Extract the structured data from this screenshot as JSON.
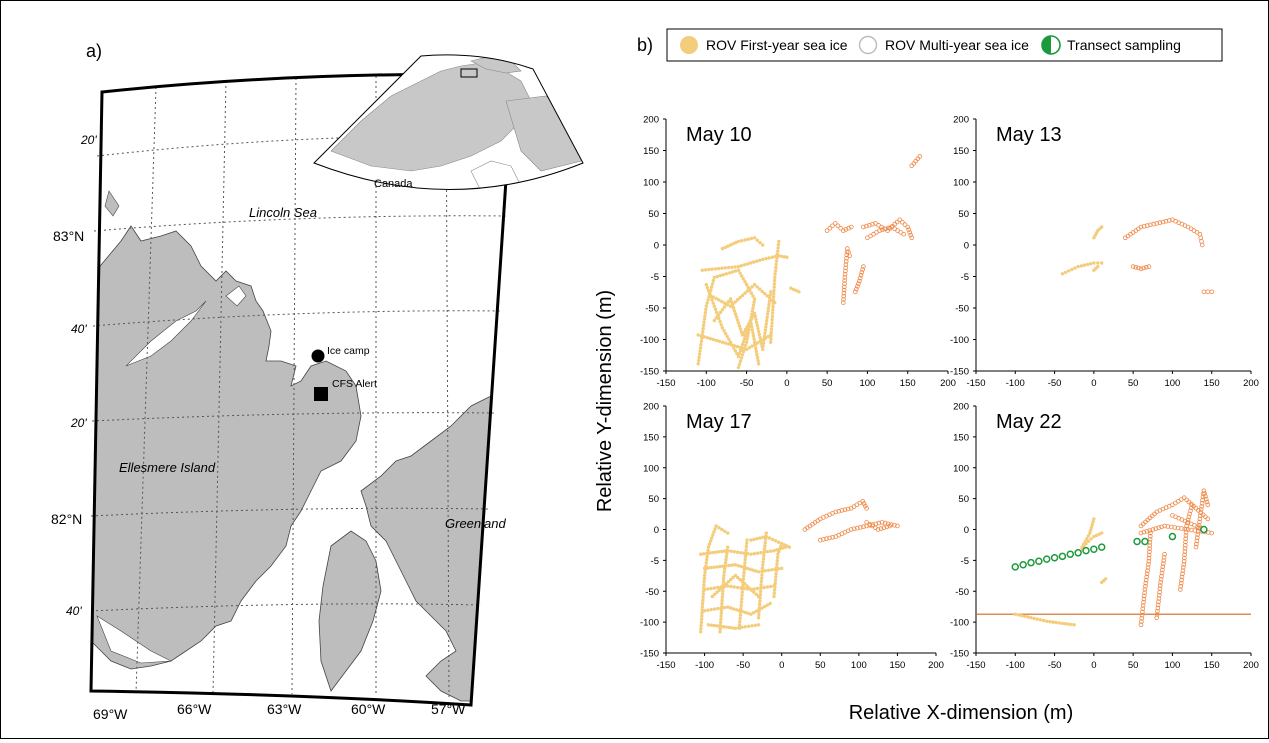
{
  "panel_a": {
    "label": "a)",
    "places": {
      "lincoln_sea": "Lincoln Sea",
      "ellesmere": "Ellesmere Island",
      "greenland": "Greenland",
      "canada": "Canada",
      "ice_camp": "Ice camp",
      "cfs_alert": "CFS Alert"
    },
    "lat_labels": [
      "20'",
      "83°N",
      "40'",
      "20'",
      "82°N",
      "40'"
    ],
    "lon_labels": [
      "69°W",
      "66°W",
      "63°W",
      "60°W",
      "57°W"
    ],
    "colors": {
      "land": "#bdbdbd",
      "water": "#ffffff",
      "inset_land": "#c8c8c8"
    }
  },
  "panel_b": {
    "label": "b)",
    "legend": [
      {
        "label": "ROV First-year sea ice",
        "icon": "filled-circle-icon",
        "color": "#f4cd7c"
      },
      {
        "label": "ROV Multi-year sea ice",
        "icon": "open-circle-icon",
        "color": "#bbbbbb"
      },
      {
        "label": "Transect sampling",
        "icon": "green-circle-icon",
        "color": "#1b9a3c"
      }
    ],
    "ylabel": "Relative Y-dimension (m)",
    "xlabel": "Relative X-dimension (m)"
  },
  "chart_data": [
    {
      "type": "scatter",
      "title": "May 10",
      "xlim": [
        -150,
        200
      ],
      "ylim": [
        -150,
        200
      ],
      "xticks": [
        "-150",
        "-100",
        "-50",
        "0",
        "50",
        "100",
        "150",
        "200"
      ],
      "yticks": [
        "200",
        "150",
        "100",
        "50",
        "0",
        "-5",
        "-50",
        "-100",
        "-150"
      ],
      "series": [
        {
          "name": "ROV First-year sea ice",
          "paths": [
            [
              [
                -110,
                -140
              ],
              [
                -100,
                -60
              ],
              [
                -90,
                -20
              ],
              [
                -60,
                -10
              ],
              [
                -40,
                -50
              ],
              [
                -50,
                -110
              ],
              [
                -60,
                -145
              ]
            ],
            [
              [
                -105,
                -10
              ],
              [
                -60,
                -5
              ],
              [
                -30,
                5
              ],
              [
                -10,
                10
              ],
              [
                0,
                8
              ]
            ],
            [
              [
                -90,
                -80
              ],
              [
                -70,
                -50
              ],
              [
                -55,
                -100
              ],
              [
                -40,
                -70
              ],
              [
                -30,
                -120
              ],
              [
                -20,
                -40
              ]
            ],
            [
              [
                -80,
                20
              ],
              [
                -60,
                30
              ],
              [
                -40,
                35
              ],
              [
                -30,
                25
              ]
            ],
            [
              [
                -100,
                -30
              ],
              [
                -80,
                -90
              ],
              [
                -60,
                -130
              ],
              [
                -45,
                -80
              ],
              [
                -35,
                -140
              ]
            ],
            [
              [
                -20,
                -110
              ],
              [
                -15,
                -20
              ],
              [
                -10,
                30
              ]
            ],
            [
              [
                -110,
                -100
              ],
              [
                -80,
                -110
              ],
              [
                -50,
                -120
              ],
              [
                -20,
                -100
              ]
            ],
            [
              [
                -95,
                -45
              ],
              [
                -70,
                -60
              ],
              [
                -40,
                -30
              ],
              [
                -15,
                -55
              ]
            ],
            [
              [
                5,
                -35
              ],
              [
                15,
                -40
              ]
            ]
          ]
        },
        {
          "name": "ROV Multi-year sea ice",
          "paths": [
            [
              [
                50,
                45
              ],
              [
                60,
                55
              ],
              [
                70,
                45
              ],
              [
                80,
                50
              ]
            ],
            [
              [
                95,
                50
              ],
              [
                110,
                55
              ],
              [
                125,
                45
              ],
              [
                140,
                60
              ],
              [
                150,
                50
              ],
              [
                155,
                35
              ]
            ],
            [
              [
                100,
                35
              ],
              [
                115,
                45
              ],
              [
                130,
                50
              ],
              [
                145,
                40
              ]
            ],
            [
              [
                70,
                -55
              ],
              [
                72,
                -20
              ],
              [
                75,
                20
              ],
              [
                78,
                10
              ]
            ],
            [
              [
                85,
                -40
              ],
              [
                90,
                -25
              ],
              [
                95,
                -5
              ]
            ],
            [
              [
                155,
                135
              ],
              [
                165,
                148
              ]
            ]
          ]
        }
      ],
      "transect": [],
      "hline": null
    },
    {
      "type": "scatter",
      "title": "May 13",
      "xlim": [
        -150,
        200
      ],
      "ylim": [
        -150,
        200
      ],
      "xticks": [
        "-150",
        "-100",
        "-50",
        "0",
        "50",
        "100",
        "150",
        "200"
      ],
      "yticks": [
        "200",
        "150",
        "100",
        "50",
        "0",
        "-5",
        "-50",
        "-100",
        "-150"
      ],
      "series": [
        {
          "name": "ROV First-year sea ice",
          "paths": [
            [
              [
                -40,
                -15
              ],
              [
                -20,
                -5
              ],
              [
                0,
                0
              ],
              [
                10,
                0
              ]
            ],
            [
              [
                0,
                35
              ],
              [
                5,
                45
              ],
              [
                10,
                50
              ]
            ],
            [
              [
                0,
                -10
              ],
              [
                5,
                -5
              ]
            ]
          ]
        },
        {
          "name": "ROV Multi-year sea ice",
          "paths": [
            [
              [
                40,
                35
              ],
              [
                60,
                50
              ],
              [
                80,
                55
              ],
              [
                100,
                60
              ],
              [
                120,
                50
              ],
              [
                135,
                40
              ],
              [
                138,
                25
              ]
            ],
            [
              [
                50,
                -5
              ],
              [
                60,
                -8
              ],
              [
                70,
                -5
              ]
            ],
            [
              [
                140,
                -40
              ],
              [
                150,
                -40
              ]
            ]
          ]
        }
      ],
      "transect": [],
      "hline": null
    },
    {
      "type": "scatter",
      "title": "May 17",
      "xlim": [
        -150,
        200
      ],
      "ylim": [
        -150,
        200
      ],
      "xticks": [
        "-150",
        "-100",
        "-50",
        "0",
        "50",
        "100",
        "150",
        "200"
      ],
      "yticks": [
        "200",
        "150",
        "100",
        "50",
        "0",
        "-5",
        "-50",
        "-100",
        "-150"
      ],
      "series": [
        {
          "name": "ROV First-year sea ice",
          "paths": [
            [
              [
                -105,
                -120
              ],
              [
                -100,
                -40
              ],
              [
                -95,
                0
              ],
              [
                -85,
                30
              ],
              [
                -70,
                20
              ]
            ],
            [
              [
                -105,
                -10
              ],
              [
                -70,
                -5
              ],
              [
                -40,
                -10
              ],
              [
                -10,
                -5
              ],
              [
                5,
                0
              ]
            ],
            [
              [
                -100,
                -30
              ],
              [
                -60,
                -25
              ],
              [
                -30,
                -35
              ],
              [
                0,
                -30
              ]
            ],
            [
              [
                -100,
                -60
              ],
              [
                -70,
                -55
              ],
              [
                -40,
                -60
              ],
              [
                -10,
                -55
              ]
            ],
            [
              [
                -100,
                -90
              ],
              [
                -70,
                -85
              ],
              [
                -40,
                -95
              ],
              [
                -15,
                -80
              ]
            ],
            [
              [
                -95,
                -110
              ],
              [
                -60,
                -115
              ],
              [
                -30,
                -110
              ]
            ],
            [
              [
                -80,
                -120
              ],
              [
                -75,
                -40
              ],
              [
                -70,
                0
              ]
            ],
            [
              [
                -55,
                -115
              ],
              [
                -50,
                -50
              ],
              [
                -45,
                10
              ]
            ],
            [
              [
                -30,
                -100
              ],
              [
                -25,
                -30
              ],
              [
                -20,
                20
              ]
            ],
            [
              [
                -10,
                -70
              ],
              [
                -5,
                -10
              ],
              [
                0,
                5
              ]
            ],
            [
              [
                -90,
                -70
              ],
              [
                -60,
                -40
              ],
              [
                -30,
                -70
              ]
            ],
            [
              [
                -40,
                10
              ],
              [
                -20,
                15
              ],
              [
                0,
                5
              ],
              [
                10,
                0
              ]
            ]
          ]
        },
        {
          "name": "ROV Multi-year sea ice",
          "paths": [
            [
              [
                30,
                25
              ],
              [
                50,
                40
              ],
              [
                70,
                50
              ],
              [
                90,
                55
              ],
              [
                105,
                65
              ],
              [
                110,
                55
              ]
            ],
            [
              [
                50,
                10
              ],
              [
                70,
                15
              ],
              [
                90,
                25
              ],
              [
                110,
                30
              ],
              [
                130,
                35
              ],
              [
                150,
                30
              ]
            ],
            [
              [
                110,
                35
              ],
              [
                125,
                25
              ],
              [
                140,
                30
              ]
            ]
          ]
        }
      ],
      "transect": [],
      "hline": null
    },
    {
      "type": "scatter",
      "title": "May 22",
      "xlim": [
        -150,
        200
      ],
      "ylim": [
        -150,
        200
      ],
      "xticks": [
        "-150",
        "-100",
        "-50",
        "0",
        "50",
        "100",
        "150",
        "200"
      ],
      "yticks": [
        "200",
        "150",
        "100",
        "50",
        "0",
        "-5",
        "-50",
        "-100",
        "-150"
      ],
      "series": [
        {
          "name": "ROV First-year sea ice",
          "paths": [
            [
              [
                -20,
                -10
              ],
              [
                -10,
                5
              ],
              [
                0,
                15
              ],
              [
                10,
                20
              ]
            ],
            [
              [
                -15,
                0
              ],
              [
                -5,
                20
              ],
              [
                0,
                40
              ]
            ],
            [
              [
                -100,
                -95
              ],
              [
                -80,
                -100
              ],
              [
                -60,
                -105
              ],
              [
                -40,
                -108
              ],
              [
                -25,
                -110
              ]
            ],
            [
              [
                10,
                -50
              ],
              [
                15,
                -45
              ]
            ]
          ]
        },
        {
          "name": "ROV Multi-year sea ice",
          "paths": [
            [
              [
                60,
                30
              ],
              [
                80,
                50
              ],
              [
                100,
                60
              ],
              [
                115,
                70
              ],
              [
                130,
                55
              ],
              [
                145,
                40
              ]
            ],
            [
              [
                60,
                -110
              ],
              [
                65,
                -60
              ],
              [
                70,
                -20
              ],
              [
                72,
                20
              ]
            ],
            [
              [
                80,
                -100
              ],
              [
                85,
                -50
              ],
              [
                90,
                -10
              ]
            ],
            [
              [
                110,
                -60
              ],
              [
                115,
                -20
              ],
              [
                118,
                30
              ],
              [
                125,
                60
              ]
            ],
            [
              [
                130,
                0
              ],
              [
                135,
                40
              ],
              [
                140,
                80
              ],
              [
                145,
                60
              ]
            ],
            [
              [
                60,
                20
              ],
              [
                90,
                30
              ],
              [
                120,
                25
              ],
              [
                150,
                20
              ]
            ],
            [
              [
                100,
                45
              ],
              [
                120,
                35
              ],
              [
                140,
                25
              ]
            ]
          ]
        }
      ],
      "transect": [
        [
          -100,
          -28
        ],
        [
          -90,
          -25
        ],
        [
          -80,
          -22
        ],
        [
          -70,
          -20
        ],
        [
          -60,
          -17
        ],
        [
          -50,
          -15
        ],
        [
          -40,
          -13
        ],
        [
          -30,
          -10
        ],
        [
          -20,
          -8
        ],
        [
          -10,
          -5
        ],
        [
          0,
          -3
        ],
        [
          10,
          0
        ],
        [
          55,
          8
        ],
        [
          65,
          8
        ],
        [
          100,
          15
        ],
        [
          140,
          25
        ]
      ],
      "hline": -95
    }
  ]
}
